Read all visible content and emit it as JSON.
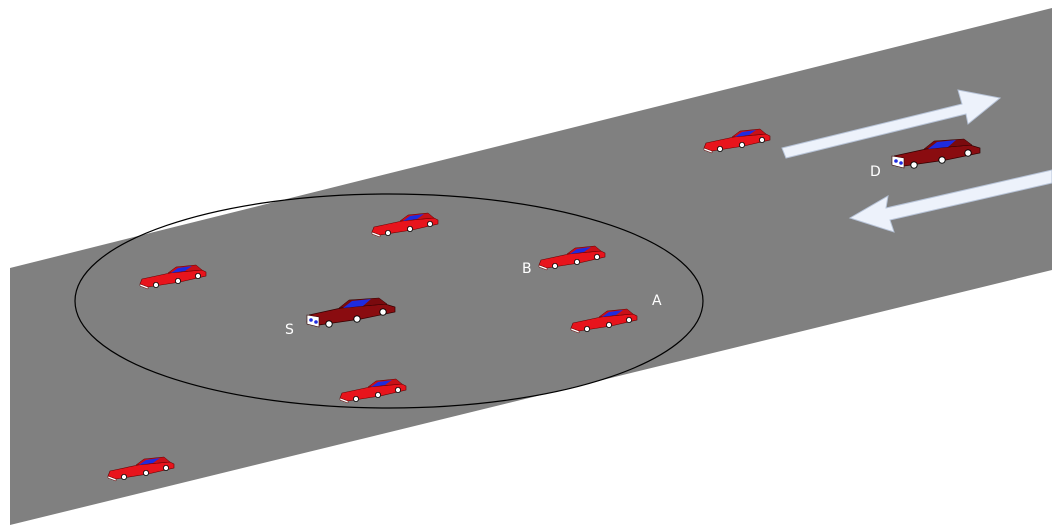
{
  "nodes": [
    {
      "label": "S"
    },
    {
      "label": "A"
    },
    {
      "label": "B"
    },
    {
      "label": "D"
    }
  ]
}
